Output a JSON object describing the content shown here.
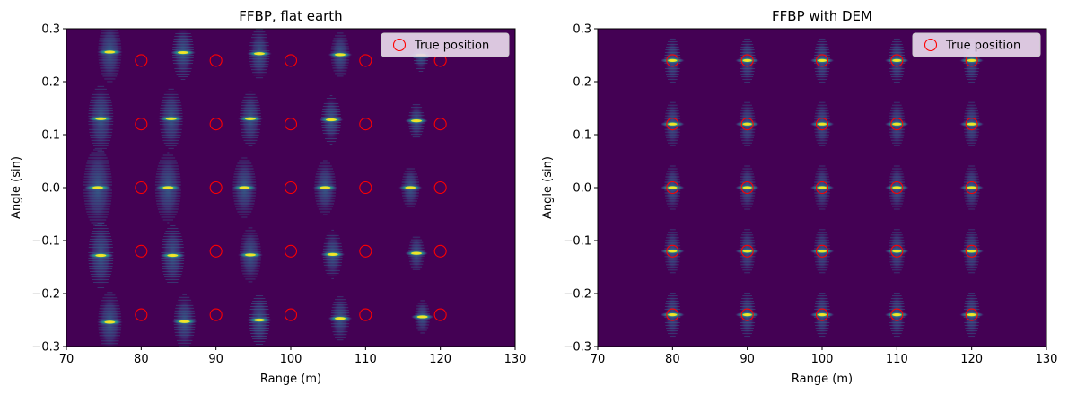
{
  "colors": {
    "background": "#440154",
    "marker": "#ff0000",
    "blob_low": "#3b528b",
    "blob_mid": "#21918c",
    "blob_high": "#5ec962",
    "blob_peak": "#fde725",
    "legend_bg": "#e8d8ec"
  },
  "chart_data": [
    {
      "type": "scatter",
      "title": "FFBP, flat earth",
      "xlabel": "Range (m)",
      "ylabel": "Angle (sin)",
      "xlim": [
        70,
        130
      ],
      "ylim": [
        -0.3,
        0.3
      ],
      "xticks": [
        70,
        80,
        90,
        100,
        110,
        120,
        130
      ],
      "yticks": [
        -0.3,
        -0.2,
        -0.1,
        0.0,
        0.1,
        0.2,
        0.3
      ],
      "xtick_labels": [
        "70",
        "80",
        "90",
        "100",
        "110",
        "120",
        "130"
      ],
      "ytick_labels": [
        "−0.3",
        "−0.2",
        "−0.1",
        "0.0",
        "0.1",
        "0.2",
        "0.3"
      ],
      "legend": {
        "label": "True position",
        "placement": "top-right"
      },
      "grid": false,
      "series": [
        {
          "name": "True position",
          "kind": "marker",
          "points": [
            [
              80,
              0.24
            ],
            [
              90,
              0.24
            ],
            [
              100,
              0.24
            ],
            [
              110,
              0.24
            ],
            [
              120,
              0.24
            ],
            [
              80,
              0.12
            ],
            [
              90,
              0.12
            ],
            [
              100,
              0.12
            ],
            [
              110,
              0.12
            ],
            [
              120,
              0.12
            ],
            [
              80,
              0.0
            ],
            [
              90,
              0.0
            ],
            [
              100,
              0.0
            ],
            [
              110,
              0.0
            ],
            [
              120,
              0.0
            ],
            [
              80,
              -0.12
            ],
            [
              90,
              -0.12
            ],
            [
              100,
              -0.12
            ],
            [
              110,
              -0.12
            ],
            [
              120,
              -0.12
            ],
            [
              80,
              -0.24
            ],
            [
              90,
              -0.24
            ],
            [
              100,
              -0.24
            ],
            [
              110,
              -0.24
            ],
            [
              120,
              -0.24
            ]
          ]
        },
        {
          "kind": "image_peaks",
          "points": [
            [
              75.8,
              0.256,
              1.0
            ],
            [
              85.6,
              0.255,
              0.9
            ],
            [
              95.8,
              0.253,
              0.85
            ],
            [
              106.6,
              0.251,
              0.75
            ],
            [
              117.4,
              0.25,
              0.55
            ],
            [
              74.6,
              0.13,
              1.1
            ],
            [
              84.0,
              0.13,
              1.0
            ],
            [
              94.6,
              0.13,
              0.9
            ],
            [
              105.4,
              0.128,
              0.8
            ],
            [
              116.8,
              0.126,
              0.6
            ],
            [
              74.2,
              0.0,
              1.3
            ],
            [
              83.6,
              0.0,
              1.15
            ],
            [
              93.8,
              0.0,
              1.0
            ],
            [
              104.6,
              0.0,
              0.9
            ],
            [
              116.0,
              0.0,
              0.7
            ],
            [
              74.6,
              -0.128,
              1.1
            ],
            [
              84.2,
              -0.128,
              1.0
            ],
            [
              94.6,
              -0.127,
              0.9
            ],
            [
              105.6,
              -0.126,
              0.8
            ],
            [
              116.8,
              -0.124,
              0.6
            ],
            [
              75.8,
              -0.254,
              1.0
            ],
            [
              85.8,
              -0.253,
              0.9
            ],
            [
              95.8,
              -0.25,
              0.85
            ],
            [
              106.6,
              -0.247,
              0.75
            ],
            [
              117.6,
              -0.244,
              0.55
            ]
          ]
        }
      ]
    },
    {
      "type": "scatter",
      "title": "FFBP with DEM",
      "xlabel": "Range (m)",
      "ylabel": "Angle (sin)",
      "xlim": [
        70,
        130
      ],
      "ylim": [
        -0.3,
        0.3
      ],
      "xticks": [
        70,
        80,
        90,
        100,
        110,
        120,
        130
      ],
      "yticks": [
        -0.3,
        -0.2,
        -0.1,
        0.0,
        0.1,
        0.2,
        0.3
      ],
      "xtick_labels": [
        "70",
        "80",
        "90",
        "100",
        "110",
        "120",
        "130"
      ],
      "ytick_labels": [
        "−0.3",
        "−0.2",
        "−0.1",
        "0.0",
        "0.1",
        "0.2",
        "0.3"
      ],
      "legend": {
        "label": "True position",
        "placement": "top-right"
      },
      "grid": false,
      "series": [
        {
          "name": "True position",
          "kind": "marker",
          "points": [
            [
              80,
              0.24
            ],
            [
              90,
              0.24
            ],
            [
              100,
              0.24
            ],
            [
              110,
              0.24
            ],
            [
              120,
              0.24
            ],
            [
              80,
              0.12
            ],
            [
              90,
              0.12
            ],
            [
              100,
              0.12
            ],
            [
              110,
              0.12
            ],
            [
              120,
              0.12
            ],
            [
              80,
              0.0
            ],
            [
              90,
              0.0
            ],
            [
              100,
              0.0
            ],
            [
              110,
              0.0
            ],
            [
              120,
              0.0
            ],
            [
              80,
              -0.12
            ],
            [
              90,
              -0.12
            ],
            [
              100,
              -0.12
            ],
            [
              110,
              -0.12
            ],
            [
              120,
              -0.12
            ],
            [
              80,
              -0.24
            ],
            [
              90,
              -0.24
            ],
            [
              100,
              -0.24
            ],
            [
              110,
              -0.24
            ],
            [
              120,
              -0.24
            ]
          ]
        },
        {
          "kind": "image_peaks",
          "points": [
            [
              80,
              0.24,
              0.9
            ],
            [
              90,
              0.24,
              0.85
            ],
            [
              100,
              0.24,
              0.8
            ],
            [
              110,
              0.24,
              0.75
            ],
            [
              120,
              0.24,
              0.65
            ],
            [
              80,
              0.12,
              0.9
            ],
            [
              90,
              0.12,
              0.85
            ],
            [
              100,
              0.12,
              0.8
            ],
            [
              110,
              0.12,
              0.75
            ],
            [
              120,
              0.12,
              0.65
            ],
            [
              80,
              0.0,
              0.95
            ],
            [
              90,
              0.0,
              0.9
            ],
            [
              100,
              0.0,
              0.85
            ],
            [
              110,
              0.0,
              0.8
            ],
            [
              120,
              0.0,
              0.7
            ],
            [
              80,
              -0.12,
              0.9
            ],
            [
              90,
              -0.12,
              0.85
            ],
            [
              100,
              -0.12,
              0.8
            ],
            [
              110,
              -0.12,
              0.75
            ],
            [
              120,
              -0.12,
              0.65
            ],
            [
              80,
              -0.24,
              0.9
            ],
            [
              90,
              -0.24,
              0.85
            ],
            [
              100,
              -0.24,
              0.8
            ],
            [
              110,
              -0.24,
              0.75
            ],
            [
              120,
              -0.24,
              0.65
            ]
          ]
        }
      ]
    }
  ]
}
